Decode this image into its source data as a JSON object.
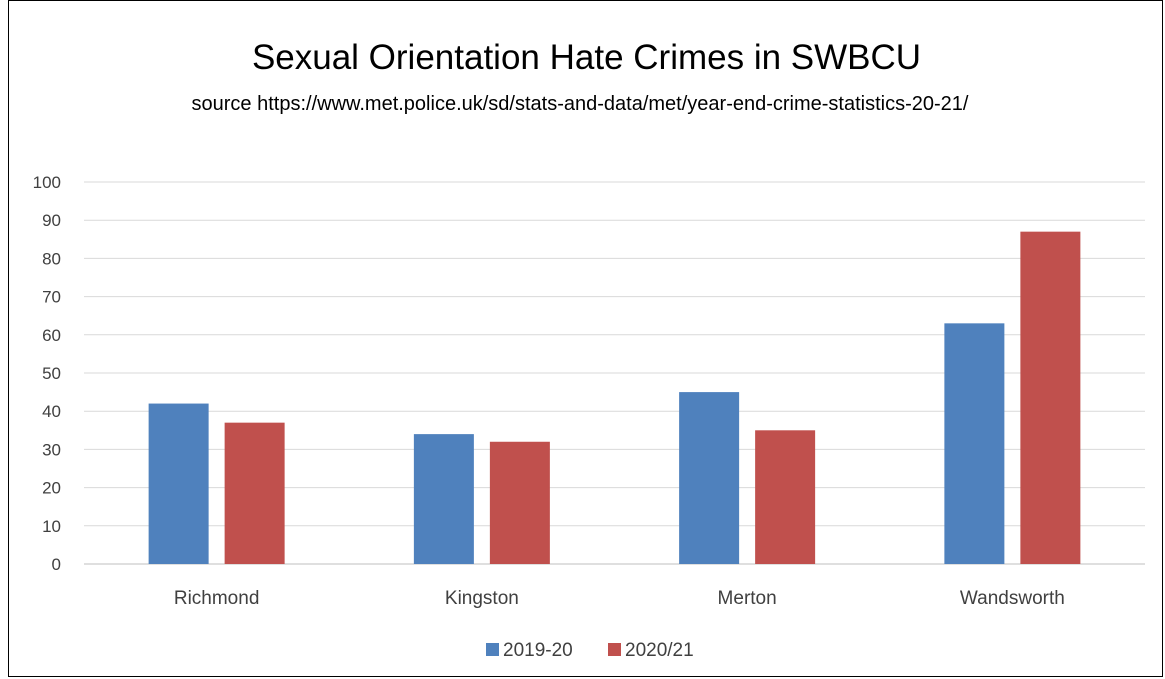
{
  "chart_data": {
    "type": "bar",
    "title": "Sexual Orientation Hate Crimes in SWBCU",
    "subtitle": "source https://www.met.police.uk/sd/stats-and-data/met/year-end-crime-statistics-20-21/",
    "categories": [
      "Richmond",
      "Kingston",
      "Merton",
      "Wandsworth"
    ],
    "series": [
      {
        "name": "2019-20",
        "values": [
          42,
          34,
          45,
          63
        ],
        "color": "#4f81bd"
      },
      {
        "name": "2020/21",
        "values": [
          37,
          32,
          35,
          87
        ],
        "color": "#c0504d"
      }
    ],
    "y_ticks": [
      "0",
      "10",
      "20",
      "30",
      "40",
      "50",
      "60",
      "70",
      "80",
      "90",
      "100"
    ],
    "ylim": [
      0,
      100
    ],
    "xlabel": "",
    "ylabel": "",
    "grid": true,
    "legend_position": "bottom"
  }
}
